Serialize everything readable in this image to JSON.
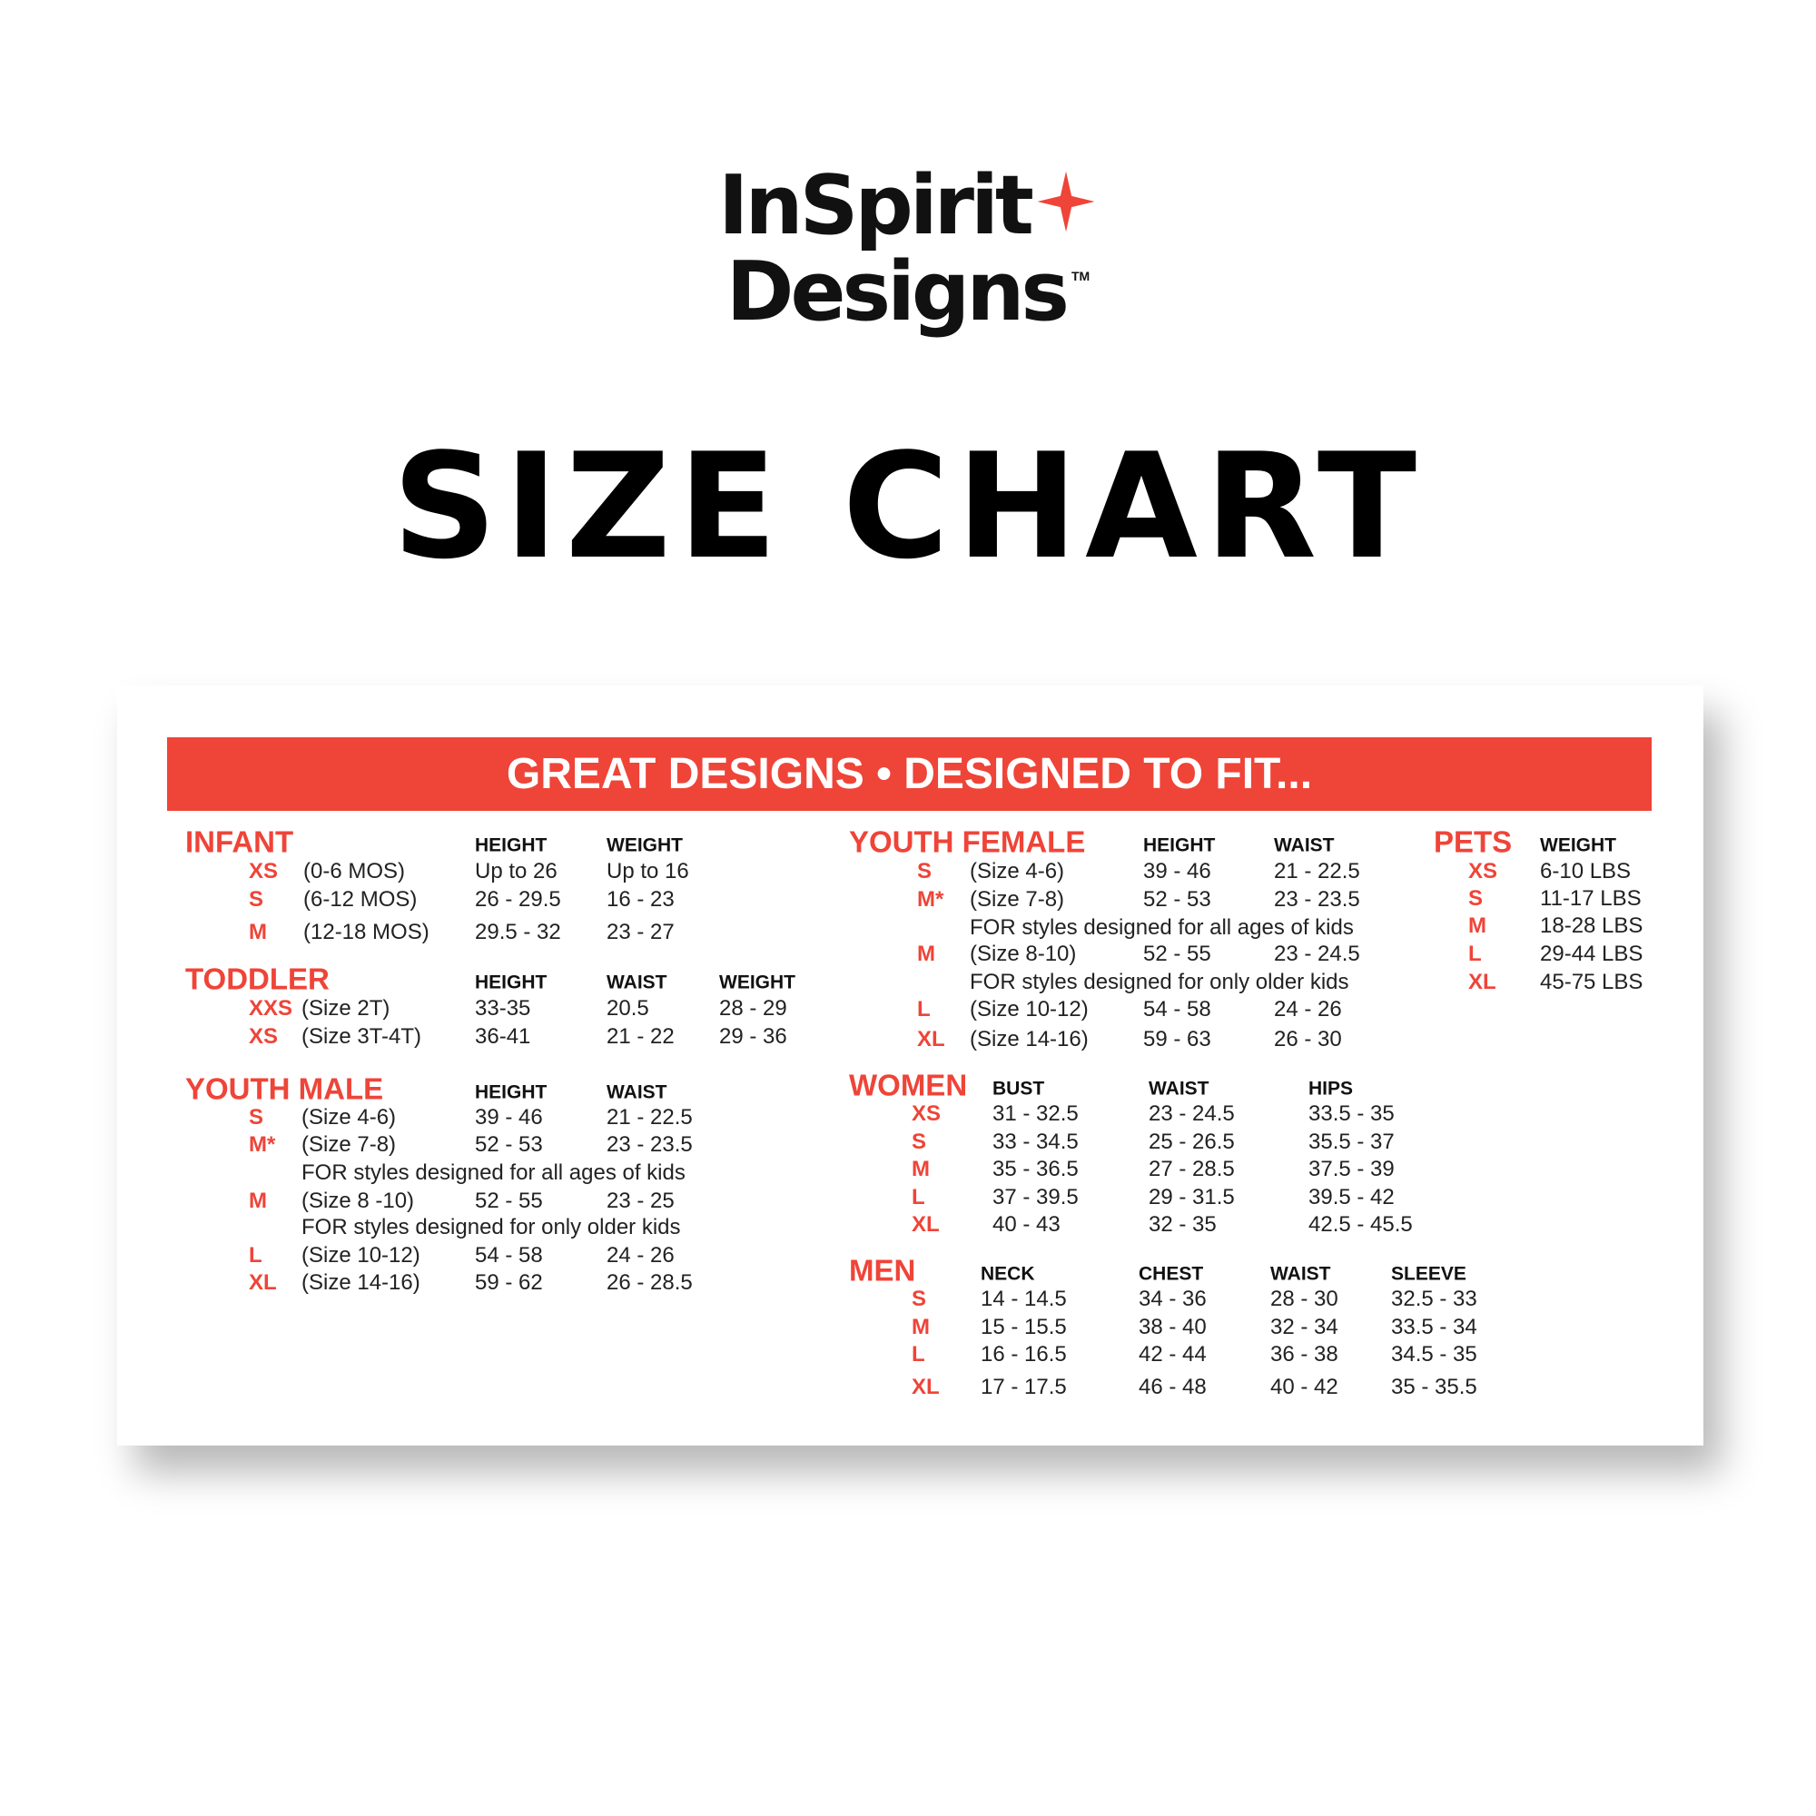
{
  "logo": {
    "line1": "InSpirit",
    "line2": "Designs",
    "trademark": "TM",
    "star_color": "#ef4438"
  },
  "title": "SIZE CHART",
  "banner": "GREAT DESIGNS • DESIGNED TO FIT...",
  "accent_color": "#ef4438",
  "sections": [
    {
      "name": "INFANT",
      "headers": [
        "HEIGHT",
        "WEIGHT"
      ],
      "rows": [
        {
          "size": "XS",
          "desc": "(0-6 MOS)",
          "values": [
            "Up to 26",
            "Up to 16"
          ]
        },
        {
          "size": "S",
          "desc": "(6-12 MOS)",
          "values": [
            "26 - 29.5",
            "16 - 23"
          ]
        },
        {
          "size": "M",
          "desc": "(12-18 MOS)",
          "values": [
            "29.5 - 32",
            "23 - 27"
          ]
        }
      ]
    },
    {
      "name": "TODDLER",
      "headers": [
        "HEIGHT",
        "WAIST",
        "WEIGHT"
      ],
      "rows": [
        {
          "size": "XXS",
          "desc": "(Size 2T)",
          "values": [
            "33-35",
            "20.5",
            "28 - 29"
          ]
        },
        {
          "size": "XS",
          "desc": "(Size 3T-4T)",
          "values": [
            "36-41",
            "21 - 22",
            "29 - 36"
          ]
        }
      ]
    },
    {
      "name": "YOUTH MALE",
      "headers": [
        "HEIGHT",
        "WAIST"
      ],
      "rows": [
        {
          "size": "S",
          "desc": "(Size 4-6)",
          "values": [
            "39 - 46",
            "21 - 22.5"
          ]
        },
        {
          "size": "M*",
          "desc": "(Size 7-8)",
          "values": [
            "52 - 53",
            "23 - 23.5"
          ]
        },
        {
          "size": "",
          "desc": "FOR styles designed for all ages of kids",
          "values": []
        },
        {
          "size": "M",
          "desc": "(Size 8 -10)",
          "values": [
            "52 - 55",
            "23 - 25"
          ]
        },
        {
          "size": "",
          "desc": "FOR styles designed for only older kids",
          "values": []
        },
        {
          "size": "L",
          "desc": "(Size 10-12)",
          "values": [
            "54 - 58",
            "24 - 26"
          ]
        },
        {
          "size": "XL",
          "desc": "(Size 14-16)",
          "values": [
            "59 - 62",
            "26 - 28.5"
          ]
        }
      ]
    },
    {
      "name": "YOUTH FEMALE",
      "headers": [
        "HEIGHT",
        "WAIST"
      ],
      "rows": [
        {
          "size": "S",
          "desc": "(Size 4-6)",
          "values": [
            "39 - 46",
            "21 - 22.5"
          ]
        },
        {
          "size": "M*",
          "desc": "(Size 7-8)",
          "values": [
            "52 - 53",
            "23 - 23.5"
          ]
        },
        {
          "size": "",
          "desc": "FOR styles designed for all ages of kids",
          "values": []
        },
        {
          "size": "M",
          "desc": "(Size 8-10)",
          "values": [
            "52 - 55",
            "23 - 24.5"
          ]
        },
        {
          "size": "",
          "desc": "FOR styles designed for only older kids",
          "values": []
        },
        {
          "size": "L",
          "desc": "(Size 10-12)",
          "values": [
            "54 - 58",
            "24 - 26"
          ]
        },
        {
          "size": "XL",
          "desc": "(Size 14-16)",
          "values": [
            "59 - 63",
            "26 - 30"
          ]
        }
      ]
    },
    {
      "name": "PETS",
      "headers": [
        "WEIGHT"
      ],
      "rows": [
        {
          "size": "XS",
          "desc": "",
          "values": [
            "6-10 LBS"
          ]
        },
        {
          "size": "S",
          "desc": "",
          "values": [
            "11-17 LBS"
          ]
        },
        {
          "size": "M",
          "desc": "",
          "values": [
            "18-28 LBS"
          ]
        },
        {
          "size": "L",
          "desc": "",
          "values": [
            "29-44 LBS"
          ]
        },
        {
          "size": "XL",
          "desc": "",
          "values": [
            "45-75 LBS"
          ]
        }
      ]
    },
    {
      "name": "WOMEN",
      "headers": [
        "BUST",
        "WAIST",
        "HIPS"
      ],
      "rows": [
        {
          "size": "XS",
          "desc": "",
          "values": [
            "31 - 32.5",
            "23 - 24.5",
            "33.5 - 35"
          ]
        },
        {
          "size": "S",
          "desc": "",
          "values": [
            "33 - 34.5",
            "25 - 26.5",
            "35.5 - 37"
          ]
        },
        {
          "size": "M",
          "desc": "",
          "values": [
            "35 - 36.5",
            "27 - 28.5",
            "37.5 - 39"
          ]
        },
        {
          "size": "L",
          "desc": "",
          "values": [
            "37 - 39.5",
            "29 - 31.5",
            "39.5 - 42"
          ]
        },
        {
          "size": "XL",
          "desc": "",
          "values": [
            "40 - 43",
            "32 - 35",
            "42.5 - 45.5"
          ]
        }
      ]
    },
    {
      "name": "MEN",
      "headers": [
        "NECK",
        "CHEST",
        "WAIST",
        "SLEEVE"
      ],
      "rows": [
        {
          "size": "S",
          "desc": "",
          "values": [
            "14 - 14.5",
            "34 - 36",
            "28 - 30",
            "32.5 - 33"
          ]
        },
        {
          "size": "M",
          "desc": "",
          "values": [
            "15 - 15.5",
            "38 - 40",
            "32 - 34",
            "33.5 - 34"
          ]
        },
        {
          "size": "L",
          "desc": "",
          "values": [
            "16 - 16.5",
            "42 - 44",
            "36 - 38",
            "34.5 - 35"
          ]
        },
        {
          "size": "XL",
          "desc": "",
          "values": [
            "17 - 17.5",
            "46 - 48",
            "40 - 42",
            "35 - 35.5"
          ]
        }
      ]
    }
  ]
}
